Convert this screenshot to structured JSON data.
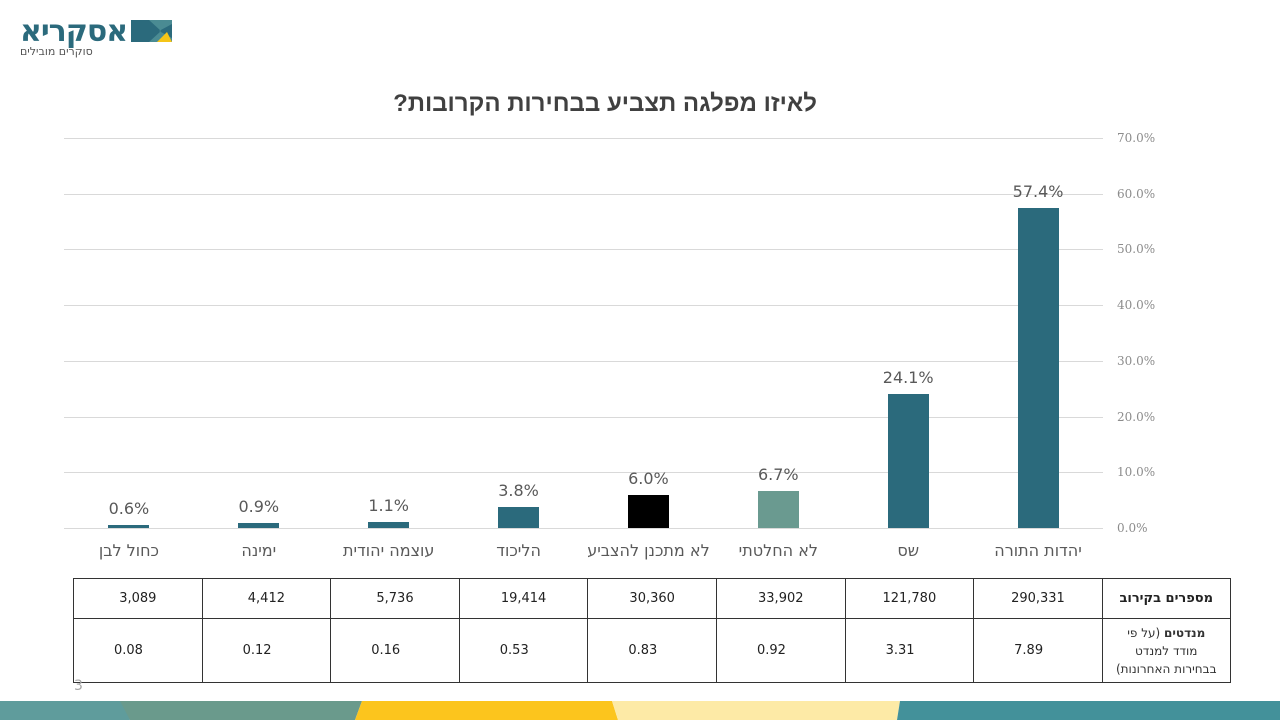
{
  "logo": {
    "name": "אסקריא",
    "tagline": "סוקרים מובילים",
    "colors": {
      "primary": "#2b6a7c",
      "accent": "#f5c518",
      "mid": "#4a8b93"
    }
  },
  "title": "לאיזו מפלגה תצביע בבחירות הקרובות?",
  "y_axis": {
    "ticks": [
      "70.0%",
      "60.0%",
      "50.0%",
      "40.0%",
      "30.0%",
      "20.0%",
      "10.0%",
      "0.0%"
    ]
  },
  "chart_data": {
    "type": "bar",
    "title": "לאיזו מפלגה תצביע בבחירות הקרובות?",
    "xlabel": "",
    "ylabel": "",
    "ylim": [
      0,
      70
    ],
    "y_tick_format": "percent_1dp",
    "y_axis_position": "right",
    "grid": true,
    "legend": "none",
    "categories": [
      "כחול לבן",
      "ימינה",
      "עוצמה יהודית",
      "הליכוד",
      "לא מתכנן להצביע",
      "לא החלטתי",
      "שס",
      "יהדות התורה"
    ],
    "values": [
      0.6,
      0.9,
      1.1,
      3.8,
      6.0,
      6.7,
      24.1,
      57.4
    ],
    "labels": [
      "0.6%",
      "0.9%",
      "1.1%",
      "3.8%",
      "6.0%",
      "6.7%",
      "24.1%",
      "57.4%"
    ],
    "colors": [
      "#2b6a7c",
      "#2b6a7c",
      "#2b6a7c",
      "#2b6a7c",
      "#000000",
      "#6a9a90",
      "#2b6a7c",
      "#2b6a7c"
    ],
    "table": {
      "rows": [
        {
          "header": "מספרים בקירוב",
          "values": [
            "3,089",
            "4,412",
            "5,736",
            "19,414",
            "30,360",
            "33,902",
            "121,780",
            "290,331"
          ]
        },
        {
          "header": "מנדטים (על פי מודד למנדט בבחירות האחרונות)",
          "values": [
            "0.08",
            "0.12",
            "0.16",
            "0.53",
            "0.83",
            "0.92",
            "3.31",
            "7.89"
          ]
        }
      ]
    }
  },
  "table": {
    "row1_header": "מספרים בקירוב",
    "row2_header_bold": "מנדטים",
    "row2_header_rest": " (על פי",
    "row2_header_line2": "מודד למנדט",
    "row2_header_line3": "בבחירות האחרונות)"
  },
  "page_number": "3",
  "footer_colors": [
    "#5f9c9c",
    "#6a9a8c",
    "#fcc51d",
    "#fdeaa6",
    "#43919a"
  ]
}
